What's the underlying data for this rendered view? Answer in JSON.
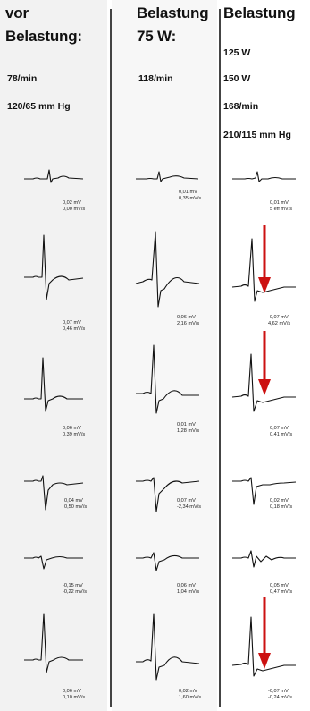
{
  "columns": [
    {
      "heading_line1": "vor",
      "heading_line2": "Belastung:",
      "info": [
        "78/min",
        "120/65 mm Hg"
      ],
      "leads": [
        {
          "mv": "0,02 mV",
          "ms": "0,00 mV/s"
        },
        {
          "mv": "0,07 mV",
          "ms": "0,46 mV/s"
        },
        {
          "mv": "0,06 mV",
          "ms": "0,39 mV/s"
        },
        {
          "mv": "0,04 mV",
          "ms": "0,50 mV/s"
        },
        {
          "mv": "-0,15 mV",
          "ms": "-0,22 mV/s"
        },
        {
          "mv": "0,06 mV",
          "ms": "0,10 mV/s"
        }
      ]
    },
    {
      "heading_line1": "Belastung",
      "heading_line2": "75 W:",
      "info": [
        "118/min"
      ],
      "leads": [
        {
          "mv": "0,01 mV",
          "ms": "0,35 mV/s"
        },
        {
          "mv": "0,06 mV",
          "ms": "2,16 mV/s"
        },
        {
          "mv": "0,01 mV",
          "ms": "1,28 mV/s"
        },
        {
          "mv": "0,07 mV",
          "ms": "-2,34 mV/s"
        },
        {
          "mv": "0,06 mV",
          "ms": "1,04 mV/s"
        },
        {
          "mv": "0,02 mV",
          "ms": "1,60 mV/s"
        }
      ]
    },
    {
      "heading_line1": "Belastung",
      "info": [
        "125 W",
        "150 W",
        "168/min",
        "210/115 mm Hg"
      ],
      "leads": [
        {
          "mv": "0,01 mV",
          "ms": "5 eff mV/s"
        },
        {
          "mv": "-0,07 mV",
          "ms": "4,62 mV/s"
        },
        {
          "mv": "0,07 mV",
          "ms": "0,41 mV/s"
        },
        {
          "mv": "0,02 mV",
          "ms": "0,18 mV/s"
        },
        {
          "mv": "0,05 mV",
          "ms": "0,47 mV/s"
        },
        {
          "mv": "-0,07 mV",
          "ms": "-0,24 mV/s"
        }
      ]
    }
  ],
  "colors": {
    "arrow": "#cc1111",
    "trace": "#111111",
    "divider": "#444444"
  },
  "arrows_in_leads": [
    2,
    3,
    6
  ]
}
